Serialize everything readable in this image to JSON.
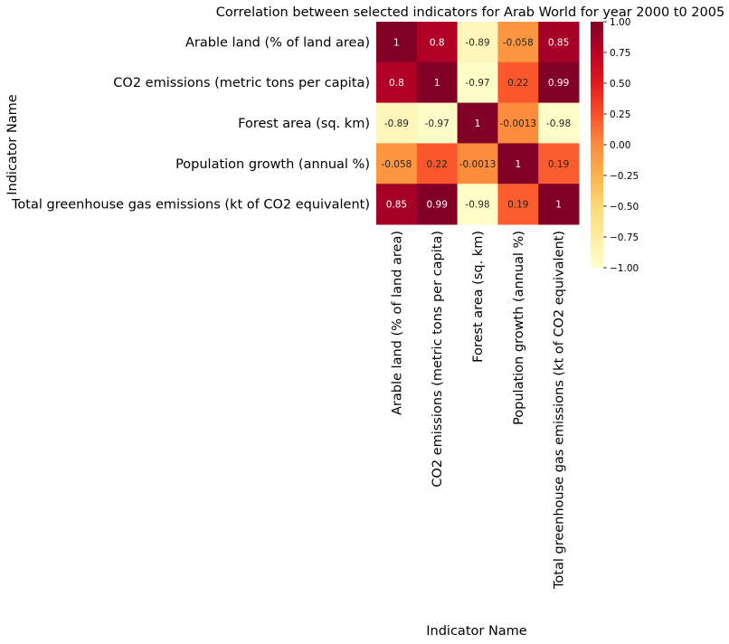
{
  "chart_data": {
    "type": "heatmap",
    "title": "Correlation between selected indicators for Arab World for year 2000 t0 2005",
    "xlabel": "Indicator Name",
    "ylabel": "Indicator Name",
    "categories": [
      "Arable land (% of land area)",
      "CO2 emissions (metric tons per capita)",
      "Forest area (sq. km)",
      "Population growth (annual %)",
      "Total greenhouse gas emissions (kt of CO2 equivalent)"
    ],
    "values": [
      [
        1,
        0.8,
        -0.89,
        -0.058,
        0.85
      ],
      [
        0.8,
        1,
        -0.97,
        0.22,
        0.99
      ],
      [
        -0.89,
        -0.97,
        1,
        -0.0013,
        -0.98
      ],
      [
        -0.058,
        0.22,
        -0.0013,
        1,
        0.19
      ],
      [
        0.85,
        0.99,
        -0.98,
        0.19,
        1
      ]
    ],
    "cell_labels": [
      [
        "1",
        "0.8",
        "-0.89",
        "-0.058",
        "0.85"
      ],
      [
        "0.8",
        "1",
        "-0.97",
        "0.22",
        "0.99"
      ],
      [
        "-0.89",
        "-0.97",
        "1",
        "-0.0013",
        "-0.98"
      ],
      [
        "-0.058",
        "0.22",
        "-0.0013",
        "1",
        "0.19"
      ],
      [
        "0.85",
        "0.99",
        "-0.98",
        "0.19",
        "1"
      ]
    ],
    "colorbar": {
      "range": [
        -1,
        1
      ],
      "ticks": [
        1.0,
        0.75,
        0.5,
        0.25,
        0.0,
        -0.25,
        -0.5,
        -0.75,
        -1.0
      ],
      "tick_labels": [
        "1.00",
        "0.75",
        "0.50",
        "0.25",
        "0.00",
        "−0.25",
        "−0.50",
        "−0.75",
        "−1.00"
      ],
      "colormap": "YlOrRd",
      "colors": [
        "#ffffcc",
        "#ffeda0",
        "#fed976",
        "#feb24c",
        "#fd8d3c",
        "#fc4e2a",
        "#e31a1c",
        "#bd0026",
        "#800026"
      ]
    }
  }
}
